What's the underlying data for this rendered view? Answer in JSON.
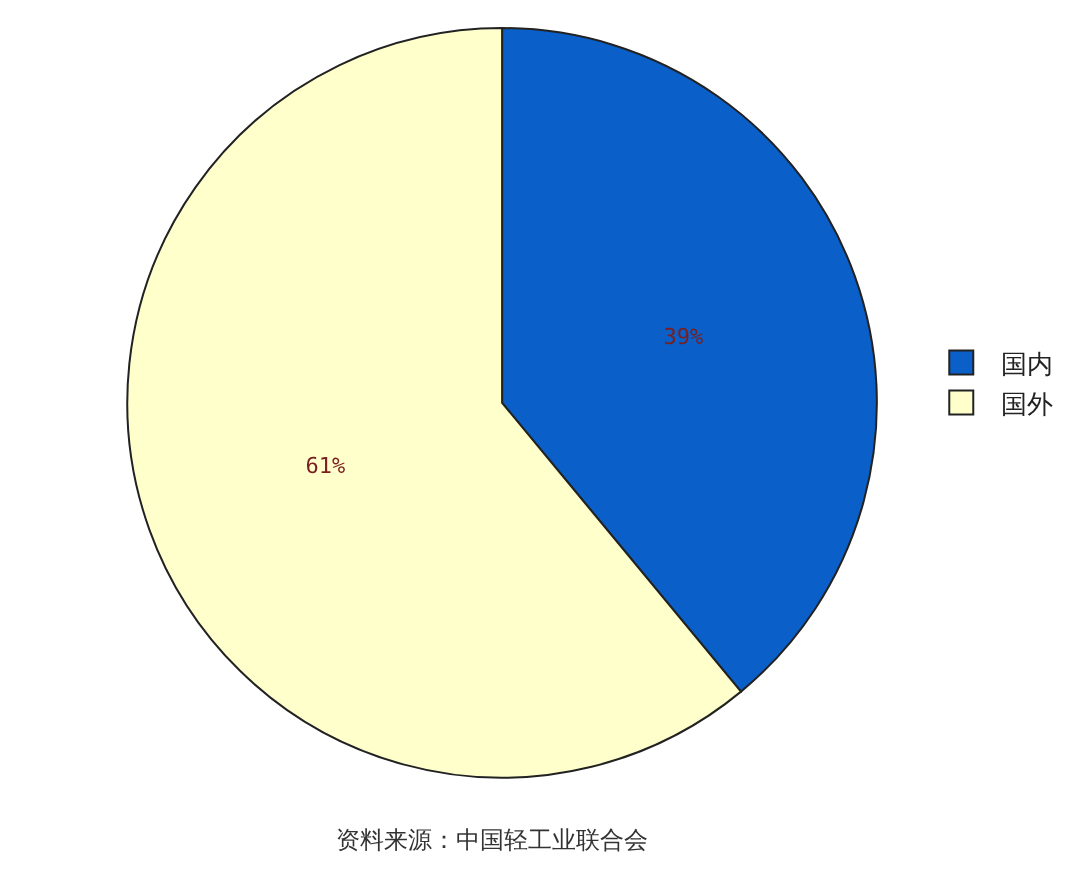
{
  "chart_data": {
    "type": "pie",
    "categories": [
      "国内",
      "国外"
    ],
    "values": [
      39,
      61
    ],
    "colors": [
      "#0a5fc8",
      "#ffffcc"
    ],
    "value_labels": [
      "39%",
      "61%"
    ],
    "legend": "right",
    "annotations": [
      "资料来源：中国轻工业联合会"
    ]
  }
}
